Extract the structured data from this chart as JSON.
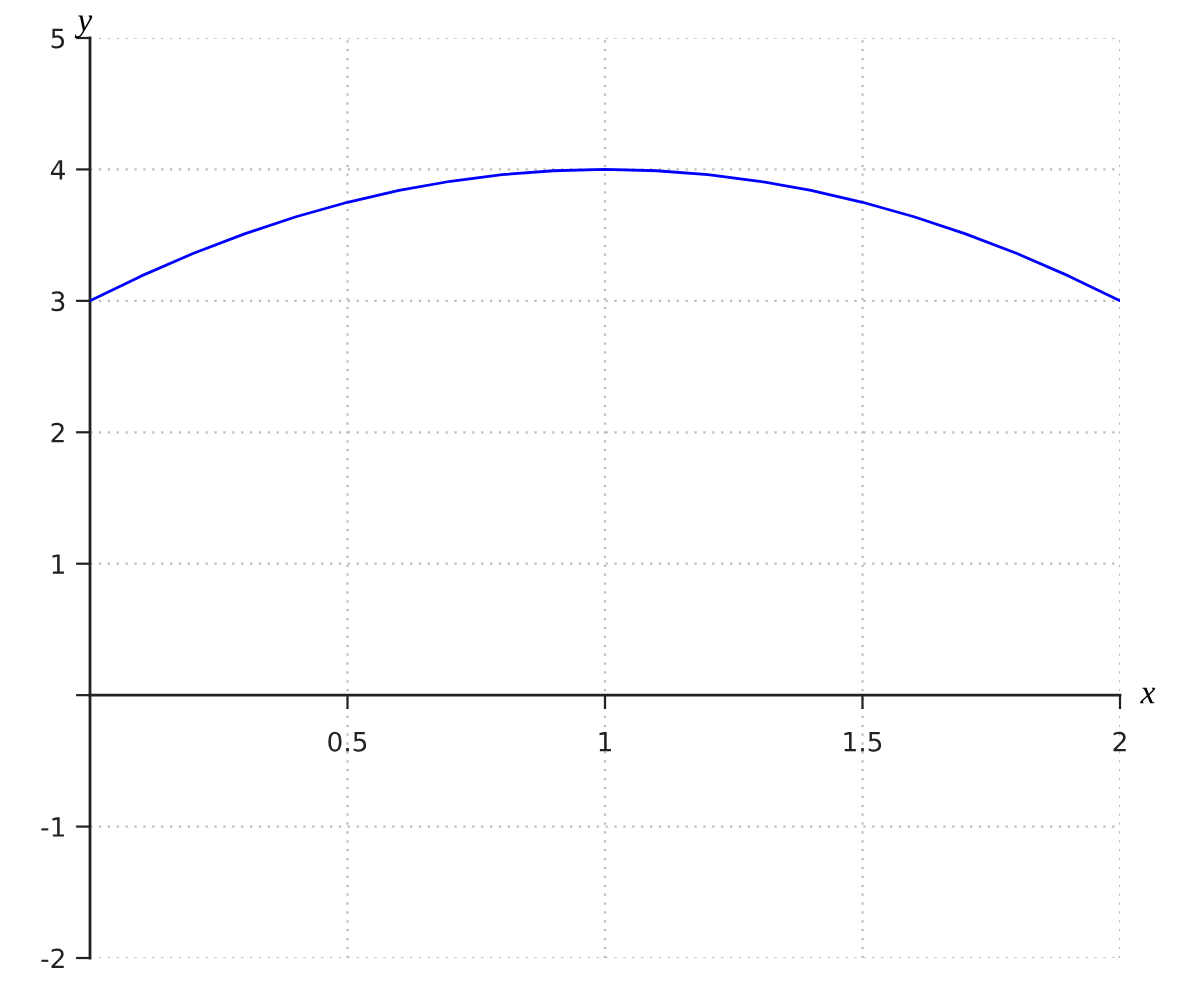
{
  "chart_data": {
    "type": "line",
    "xlabel": "x",
    "ylabel": "y",
    "x": [
      0,
      0.1,
      0.2,
      0.3,
      0.4,
      0.5,
      0.6,
      0.7,
      0.8,
      0.9,
      1,
      1.1,
      1.2,
      1.3,
      1.4,
      1.5,
      1.6,
      1.7,
      1.8,
      1.9,
      2
    ],
    "series": [
      {
        "color": "#0000ff",
        "values": [
          3,
          3.19,
          3.36,
          3.51,
          3.64,
          3.75,
          3.84,
          3.91,
          3.96,
          3.99,
          4,
          3.99,
          3.96,
          3.91,
          3.84,
          3.75,
          3.64,
          3.51,
          3.36,
          3.19,
          3
        ]
      }
    ],
    "xlim": [
      0,
      2
    ],
    "ylim": [
      -2,
      5
    ],
    "xticks": [
      0.5,
      1,
      1.5,
      2
    ],
    "yticks": [
      -2,
      -1,
      {
        "value": 0,
        "label": null
      },
      1,
      2,
      3,
      4,
      5
    ],
    "grid": true,
    "line_style": "solid"
  }
}
